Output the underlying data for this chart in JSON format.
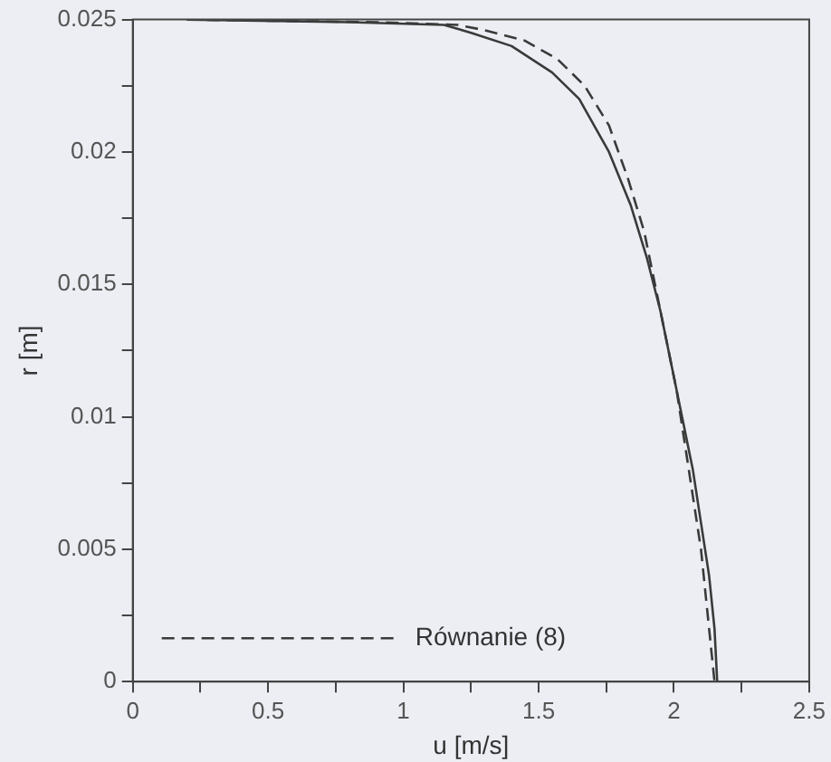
{
  "chart_data": {
    "type": "line",
    "xlabel": "u [m/s]",
    "ylabel": "r [m]",
    "xlim": [
      0,
      2.5
    ],
    "ylim": [
      0,
      0.025
    ],
    "xticks": [
      0,
      {
        "value": 0.25,
        "label": null
      },
      0.5,
      {
        "value": 0.75,
        "label": null
      },
      1,
      {
        "value": 1.25,
        "label": null
      },
      1.5,
      {
        "value": 1.75,
        "label": null
      },
      2,
      {
        "value": 2.25,
        "label": null
      },
      2.5
    ],
    "yticks": [
      0,
      {
        "value": 0.0025,
        "label": null
      },
      0.005,
      {
        "value": 0.0075,
        "label": null
      },
      0.01,
      {
        "value": 0.0125,
        "label": null
      },
      0.015,
      {
        "value": 0.0175,
        "label": null
      },
      0.02,
      {
        "value": 0.0225,
        "label": null
      },
      0.025
    ],
    "grid": false,
    "legend": "bottom left",
    "marker": "none",
    "series": [
      {
        "color": "#3a3a3a",
        "line_style": "solid",
        "x": [
          0.2,
          0.8,
          1.15,
          1.25,
          1.4,
          1.55,
          1.65,
          1.76,
          1.84,
          1.9,
          1.95,
          1.99,
          2.03,
          2.07,
          2.1,
          2.13,
          2.15,
          2.16
        ],
        "values": [
          0.025,
          0.0249,
          0.0248,
          0.0245,
          0.024,
          0.023,
          0.022,
          0.02,
          0.018,
          0.016,
          0.014,
          0.012,
          0.01,
          0.008,
          0.006,
          0.004,
          0.002,
          0
        ]
      },
      {
        "name": "Równanie (8)",
        "color": "#3a3a3a",
        "line_style": "dashed",
        "x": [
          0.2,
          0.9,
          1.2,
          1.3,
          1.45,
          1.57,
          1.67,
          1.76,
          1.83,
          1.89,
          1.93,
          1.97,
          2.01,
          2.04,
          2.07,
          2.1,
          2.12,
          2.14,
          2.15
        ],
        "values": [
          0.025,
          0.0249,
          0.0248,
          0.0246,
          0.0242,
          0.0235,
          0.0225,
          0.021,
          0.019,
          0.017,
          0.015,
          0.013,
          0.011,
          0.009,
          0.007,
          0.005,
          0.003,
          0.001,
          0
        ]
      }
    ]
  }
}
